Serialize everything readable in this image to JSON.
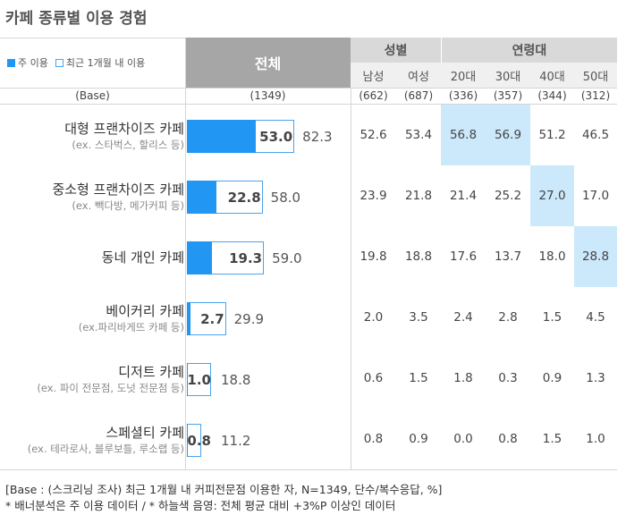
{
  "title": "카페 종류별 이용 경험",
  "legend": {
    "primary": "주 이용",
    "secondary": "최근 1개월 내 이용",
    "primary_color": "#2196f3",
    "outline_color": "#4aa3f0"
  },
  "header": {
    "total": "전체",
    "groups": [
      {
        "label": "성별",
        "columns": [
          "남성",
          "여성"
        ]
      },
      {
        "label": "연령대",
        "columns": [
          "20대",
          "30대",
          "40대",
          "50대"
        ]
      }
    ]
  },
  "base": {
    "label": "(Base)",
    "total": "(1349)",
    "columns": [
      "(662)",
      "(687)",
      "(336)",
      "(357)",
      "(344)",
      "(312)"
    ]
  },
  "highlight_color": "#cce8fb",
  "chart_data": {
    "type": "bar",
    "series": [
      {
        "name": "주 이용"
      },
      {
        "name": "최근 1개월 내 이용"
      }
    ],
    "rows": [
      {
        "label": "대형 프랜차이즈 카페",
        "sub": "(ex. 스타벅스, 할리스 등)",
        "primary": "53.0",
        "secondary": "82.3",
        "values": [
          "52.6",
          "53.4",
          "56.8",
          "56.9",
          "51.2",
          "46.5"
        ],
        "highlight": [
          2,
          3
        ]
      },
      {
        "label": "중소형 프랜차이즈 카페",
        "sub": "(ex. 빽다방, 메가커피 등)",
        "primary": "22.8",
        "secondary": "58.0",
        "values": [
          "23.9",
          "21.8",
          "21.4",
          "25.2",
          "27.0",
          "17.0"
        ],
        "highlight": [
          4
        ]
      },
      {
        "label": "동네 개인 카페",
        "sub": "",
        "primary": "19.3",
        "secondary": "59.0",
        "values": [
          "19.8",
          "18.8",
          "17.6",
          "13.7",
          "18.0",
          "28.8"
        ],
        "highlight": [
          5
        ]
      },
      {
        "label": "베이커리 카페",
        "sub": "(ex.파리바게뜨 카페 등)",
        "primary": "2.7",
        "secondary": "29.9",
        "values": [
          "2.0",
          "3.5",
          "2.4",
          "2.8",
          "1.5",
          "4.5"
        ],
        "highlight": []
      },
      {
        "label": "디저트 카페",
        "sub": "(ex. 파이 전문점, 도넛 전문점 등)",
        "primary": "1.0",
        "secondary": "18.8",
        "values": [
          "0.6",
          "1.5",
          "1.8",
          "0.3",
          "0.9",
          "1.3"
        ],
        "highlight": []
      },
      {
        "label": "스페셜티 카페",
        "sub": "(ex. 테라로사, 블루보틀, 루소랩 등)",
        "primary": "0.8",
        "secondary": "11.2",
        "values": [
          "0.8",
          "0.9",
          "0.0",
          "0.8",
          "1.5",
          "1.0"
        ],
        "highlight": []
      }
    ]
  },
  "footnotes": [
    "[Base : (스크리닝 조사) 최근 1개월 내 커피전문점 이용한 자, N=1349, 단수/복수응답, %]",
    "* 배너분석은 주 이용 데이터 / * 하늘색 음영: 전체 평균 대비 +3%P 이상인 데이터"
  ]
}
